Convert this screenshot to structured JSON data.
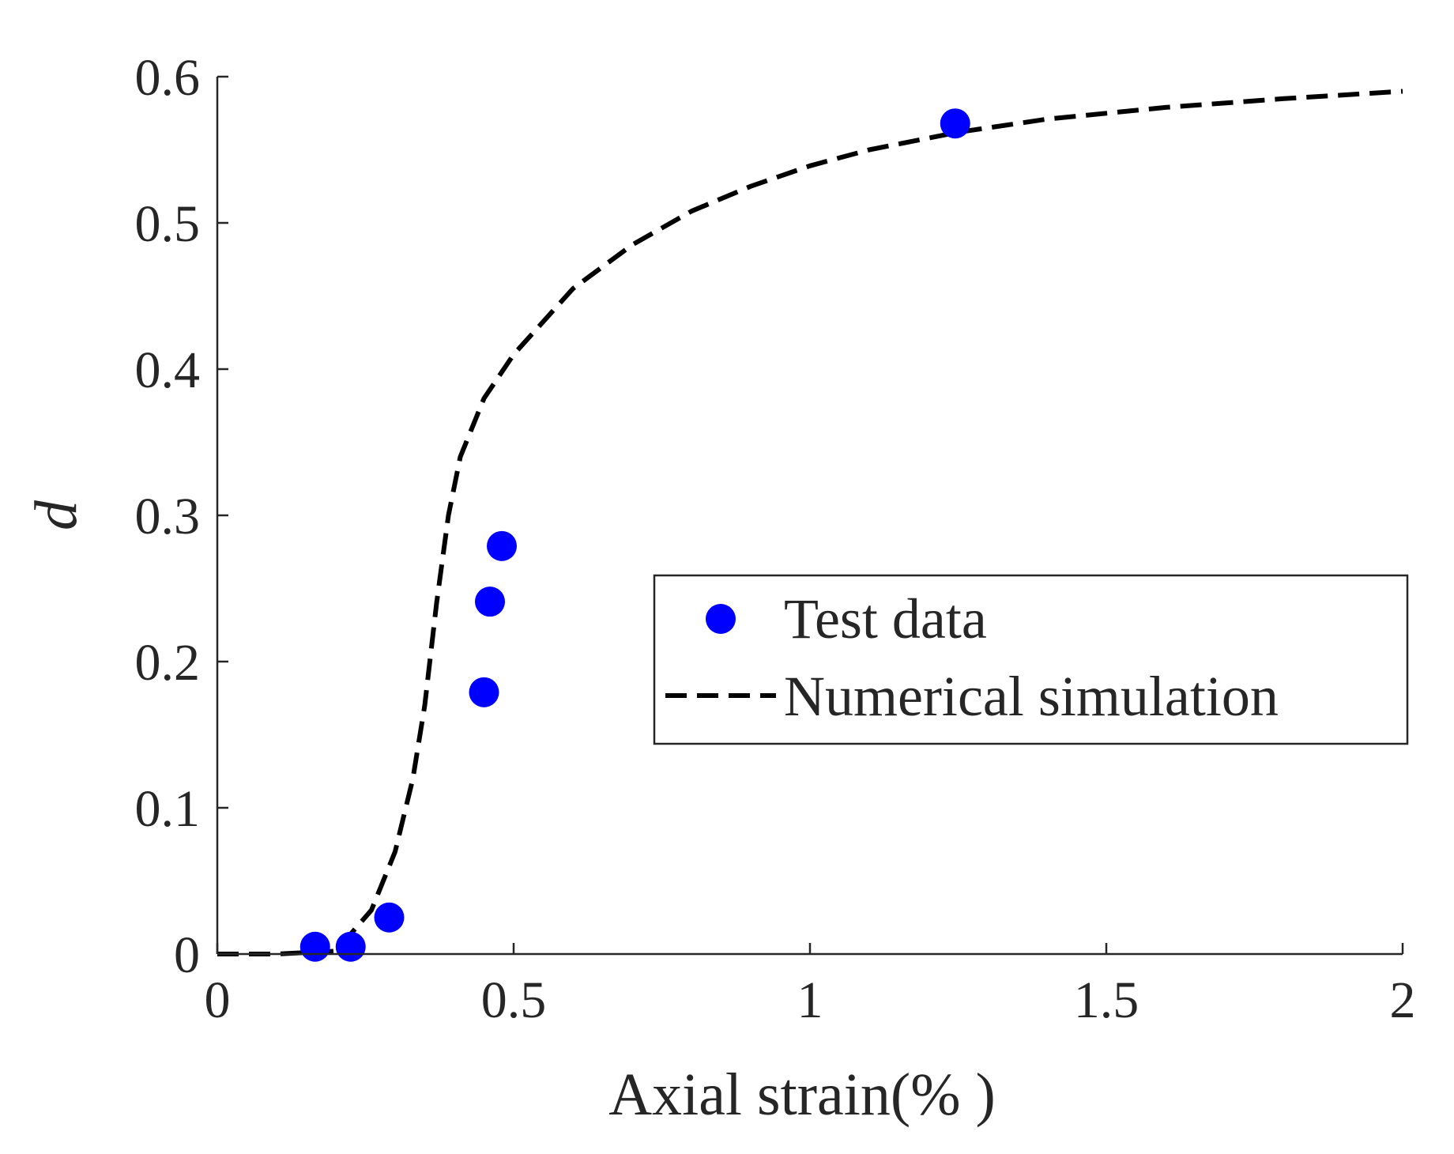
{
  "chart_data": {
    "type": "scatter",
    "title": "",
    "xlabel": "Axial strain(% )",
    "ylabel": "d",
    "xlim": [
      0,
      2
    ],
    "ylim": [
      0,
      0.6
    ],
    "xticks": [
      0,
      0.5,
      1,
      1.5,
      2
    ],
    "xtick_labels": [
      "0",
      "0.5",
      "1",
      "1.5",
      "2"
    ],
    "yticks": [
      0,
      0.1,
      0.2,
      0.3,
      0.4,
      0.5,
      0.6
    ],
    "ytick_labels": [
      "0",
      "0.1",
      "0.2",
      "0.3",
      "0.4",
      "0.5",
      "0.6"
    ],
    "grid": false,
    "legend_position": "center-right",
    "series": [
      {
        "name": "Test data",
        "kind": "scatter",
        "color": "#0000ff",
        "points": [
          {
            "x": 0.165,
            "y": 0.005
          },
          {
            "x": 0.225,
            "y": 0.005
          },
          {
            "x": 0.29,
            "y": 0.025
          },
          {
            "x": 0.45,
            "y": 0.179
          },
          {
            "x": 0.46,
            "y": 0.241
          },
          {
            "x": 0.48,
            "y": 0.279
          },
          {
            "x": 1.245,
            "y": 0.568
          }
        ]
      },
      {
        "name": "Numerical simulation",
        "kind": "line",
        "style": "dashed",
        "color": "#000000",
        "points": [
          {
            "x": 0.0,
            "y": 0.0
          },
          {
            "x": 0.1,
            "y": 0.0
          },
          {
            "x": 0.2,
            "y": 0.002
          },
          {
            "x": 0.26,
            "y": 0.03
          },
          {
            "x": 0.3,
            "y": 0.07
          },
          {
            "x": 0.33,
            "y": 0.12
          },
          {
            "x": 0.35,
            "y": 0.17
          },
          {
            "x": 0.37,
            "y": 0.24
          },
          {
            "x": 0.39,
            "y": 0.3
          },
          {
            "x": 0.41,
            "y": 0.34
          },
          {
            "x": 0.45,
            "y": 0.38
          },
          {
            "x": 0.5,
            "y": 0.41
          },
          {
            "x": 0.6,
            "y": 0.455
          },
          {
            "x": 0.7,
            "y": 0.485
          },
          {
            "x": 0.8,
            "y": 0.508
          },
          {
            "x": 0.9,
            "y": 0.525
          },
          {
            "x": 1.0,
            "y": 0.539
          },
          {
            "x": 1.1,
            "y": 0.55
          },
          {
            "x": 1.25,
            "y": 0.562
          },
          {
            "x": 1.4,
            "y": 0.571
          },
          {
            "x": 1.6,
            "y": 0.579
          },
          {
            "x": 1.8,
            "y": 0.585
          },
          {
            "x": 2.0,
            "y": 0.59
          }
        ]
      }
    ]
  }
}
